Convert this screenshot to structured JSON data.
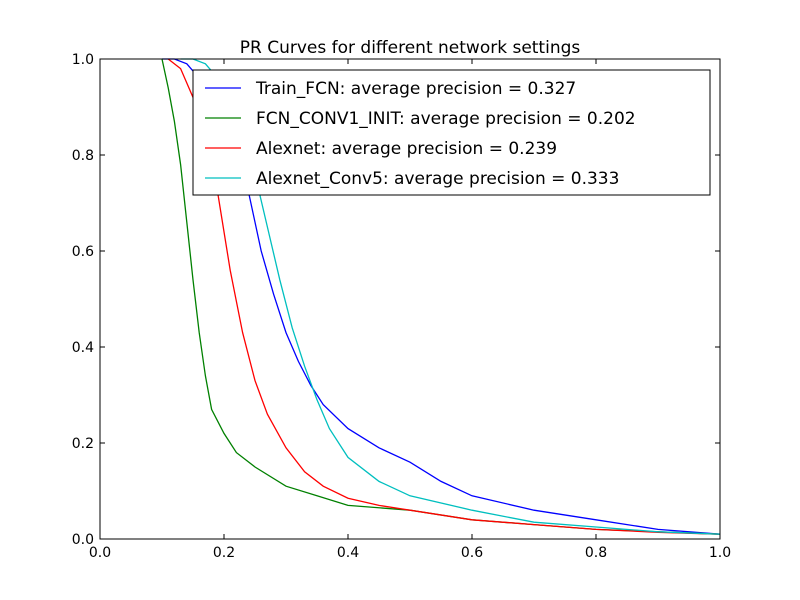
{
  "chart_data": {
    "type": "line",
    "title": "PR Curves for different network settings",
    "xlabel": "",
    "ylabel": "",
    "xlim": [
      0.0,
      1.0
    ],
    "ylim": [
      0.0,
      1.0
    ],
    "xticks": [
      "0.0",
      "0.2",
      "0.4",
      "0.6",
      "0.8",
      "1.0"
    ],
    "yticks": [
      "0.0",
      "0.2",
      "0.4",
      "0.6",
      "0.8",
      "1.0"
    ],
    "grid": false,
    "legend_position": "top-right",
    "series": [
      {
        "name": "Train_FCN: average precision = 0.327",
        "color": "#0000ff",
        "x": [
          0.1,
          0.12,
          0.14,
          0.16,
          0.18,
          0.2,
          0.22,
          0.24,
          0.26,
          0.28,
          0.3,
          0.32,
          0.34,
          0.36,
          0.4,
          0.45,
          0.5,
          0.55,
          0.6,
          0.7,
          0.8,
          0.9,
          1.0
        ],
        "y": [
          1.0,
          1.0,
          0.99,
          0.96,
          0.92,
          0.88,
          0.82,
          0.72,
          0.6,
          0.51,
          0.43,
          0.37,
          0.32,
          0.28,
          0.23,
          0.19,
          0.16,
          0.12,
          0.09,
          0.06,
          0.04,
          0.02,
          0.01
        ]
      },
      {
        "name": "FCN_CONV1_INIT: average precision = 0.202",
        "color": "#008000",
        "x": [
          0.1,
          0.11,
          0.12,
          0.13,
          0.14,
          0.15,
          0.16,
          0.17,
          0.18,
          0.2,
          0.22,
          0.25,
          0.3,
          0.35,
          0.4,
          0.5,
          0.6,
          0.7,
          0.8,
          0.9,
          1.0
        ],
        "y": [
          1.0,
          0.94,
          0.87,
          0.78,
          0.66,
          0.54,
          0.43,
          0.34,
          0.27,
          0.22,
          0.18,
          0.15,
          0.11,
          0.09,
          0.07,
          0.06,
          0.04,
          0.03,
          0.02,
          0.015,
          0.01
        ]
      },
      {
        "name": "Alexnet: average precision = 0.239",
        "color": "#ff0000",
        "x": [
          0.11,
          0.13,
          0.15,
          0.17,
          0.19,
          0.21,
          0.23,
          0.25,
          0.27,
          0.3,
          0.33,
          0.36,
          0.4,
          0.45,
          0.5,
          0.6,
          0.7,
          0.8,
          0.9,
          1.0
        ],
        "y": [
          1.0,
          0.98,
          0.92,
          0.84,
          0.72,
          0.56,
          0.43,
          0.33,
          0.26,
          0.19,
          0.14,
          0.11,
          0.085,
          0.07,
          0.06,
          0.04,
          0.03,
          0.02,
          0.014,
          0.01
        ]
      },
      {
        "name": "Alexnet_Conv5: average precision = 0.333",
        "color": "#00bfbf",
        "x": [
          0.13,
          0.15,
          0.17,
          0.19,
          0.21,
          0.23,
          0.25,
          0.27,
          0.29,
          0.31,
          0.33,
          0.35,
          0.37,
          0.4,
          0.45,
          0.5,
          0.6,
          0.7,
          0.8,
          0.9,
          1.0
        ],
        "y": [
          1.0,
          1.0,
          0.99,
          0.96,
          0.91,
          0.84,
          0.76,
          0.65,
          0.54,
          0.44,
          0.36,
          0.29,
          0.23,
          0.17,
          0.12,
          0.09,
          0.06,
          0.035,
          0.025,
          0.015,
          0.01
        ]
      }
    ]
  }
}
